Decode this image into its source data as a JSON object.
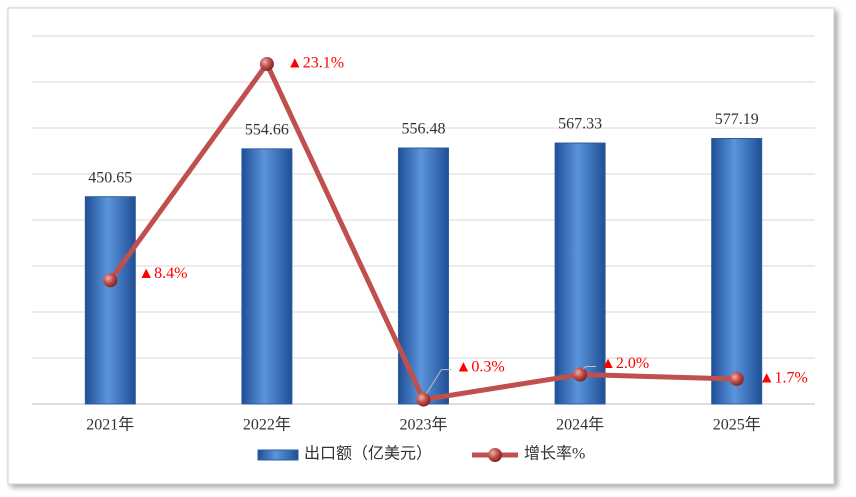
{
  "chart_data": {
    "type": "bar-line",
    "categories": [
      "2021年",
      "2022年",
      "2023年",
      "2024年",
      "2025年"
    ],
    "series": [
      {
        "name": "出口额（亿美元）",
        "type": "bar",
        "color": "#3b78c8",
        "values": [
          450.65,
          554.66,
          556.48,
          567.33,
          577.19
        ]
      },
      {
        "name": "增长率%",
        "type": "line",
        "axis": "y2",
        "color": "#c0504d",
        "values": [
          8.4,
          23.1,
          0.3,
          2.0,
          1.7
        ],
        "value_labels": [
          "▲8.4%",
          "▲23.1%",
          "▲0.3%",
          "▲2.0%",
          "▲1.7%"
        ],
        "label_color": "#ff0000"
      }
    ],
    "ylim": [
      0,
      800
    ],
    "y2lim": [
      0,
      25
    ],
    "grid": true,
    "legend": "bottom"
  }
}
